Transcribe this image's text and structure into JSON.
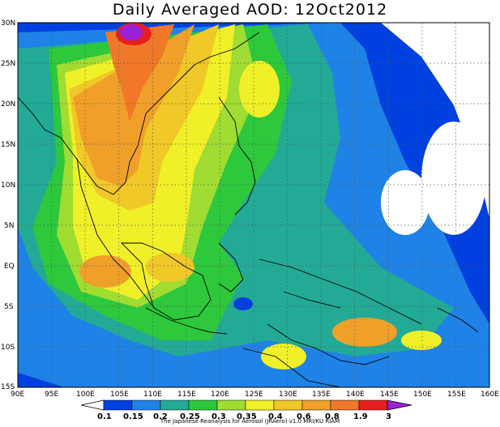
{
  "title": "Daily Averaged AOD: 12Oct2012",
  "credit": "The Japanese Reanalysis for Aerosol (JRAero) v1.0 MRI/KU RIAM",
  "map": {
    "lon_range": [
      90,
      160
    ],
    "lat_range": [
      -15,
      30
    ],
    "lon_ticks": [
      "90E",
      "95E",
      "100E",
      "105E",
      "110E",
      "115E",
      "120E",
      "125E",
      "130E",
      "135E",
      "140E",
      "145E",
      "150E",
      "155E",
      "160E"
    ],
    "lat_ticks": [
      "30N",
      "25N",
      "20N",
      "15N",
      "10N",
      "5N",
      "EQ",
      "5S",
      "10S",
      "15S"
    ],
    "grid": "dotted"
  },
  "colorbar": {
    "labels": [
      "0.1",
      "0.15",
      "0.2",
      "0.25",
      "0.3",
      "0.35",
      "0.4",
      "0.6",
      "0.8",
      "1.9",
      "3"
    ],
    "colors": [
      "#ffffff",
      "#0040e0",
      "#1f82e6",
      "#23aa96",
      "#2dc83c",
      "#a0dc32",
      "#f0f028",
      "#f0c828",
      "#f0a028",
      "#f07828",
      "#e61e1e",
      "#9b21d7"
    ]
  },
  "chart_data": {
    "type": "heatmap",
    "title": "Daily Averaged AOD: 12Oct2012",
    "variable": "AOD",
    "levels": [
      0.1,
      0.15,
      0.2,
      0.25,
      0.3,
      0.35,
      0.4,
      0.6,
      0.8,
      1.9,
      3
    ],
    "xlim": [
      90,
      160
    ],
    "ylim": [
      -15,
      30
    ],
    "regions": [
      {
        "lon": 108.5,
        "lat": 29,
        "aod": 3
      },
      {
        "lon": 107,
        "lat": 20,
        "aod": 0.8
      },
      {
        "lon": 114,
        "lat": 23,
        "aod": 0.8
      },
      {
        "lon": 104,
        "lat": 13,
        "aod": 0.6
      },
      {
        "lon": 113,
        "lat": -1,
        "aod": 0.6
      },
      {
        "lon": 103,
        "lat": -3,
        "aod": 0.6
      },
      {
        "lon": 129,
        "lat": 19,
        "aod": 0.4
      },
      {
        "lon": 142,
        "lat": -7,
        "aod": 0.6
      },
      {
        "lon": 131,
        "lat": -10,
        "aod": 0.4
      },
      {
        "lon": 140,
        "lat": 5,
        "aod": 0.15
      },
      {
        "lon": 155,
        "lat": 0,
        "aod": 0.1
      }
    ]
  }
}
